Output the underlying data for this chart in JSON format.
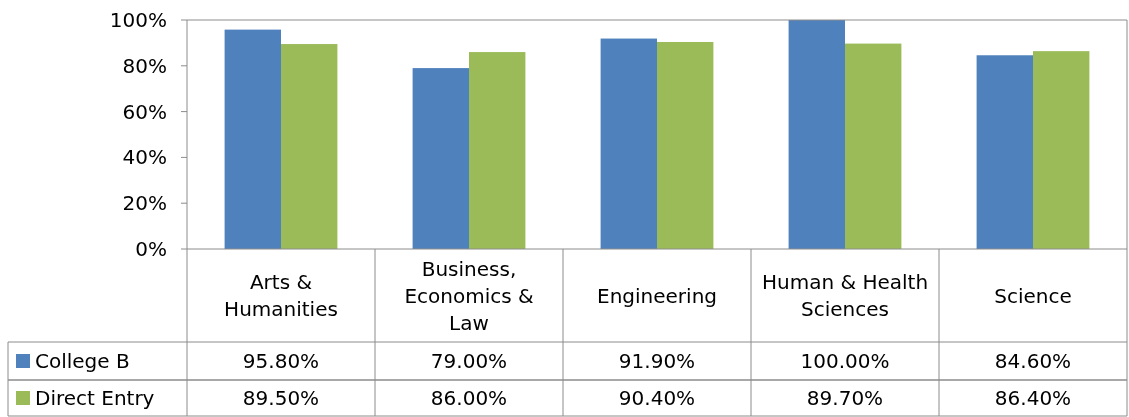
{
  "chart_data": {
    "type": "bar",
    "categories": [
      "Arts & Humanities",
      "Business, Economics & Law",
      "Engineering",
      "Human & Health Sciences",
      "Science"
    ],
    "series": [
      {
        "name": "College B",
        "color": "#4f81bd",
        "values": [
          95.8,
          79.0,
          91.9,
          100.0,
          84.6
        ],
        "value_labels": [
          "95.80%",
          "79.00%",
          "91.90%",
          "100.00%",
          "84.60%"
        ]
      },
      {
        "name": "Direct Entry",
        "color": "#9bbb59",
        "values": [
          89.5,
          86.0,
          90.4,
          89.7,
          86.4
        ],
        "value_labels": [
          "89.50%",
          "86.00%",
          "90.40%",
          "89.70%",
          "86.40%"
        ]
      }
    ],
    "ylim": [
      0,
      100
    ],
    "yticks": [
      {
        "value": 0,
        "label": "0%"
      },
      {
        "value": 20,
        "label": "20%"
      },
      {
        "value": 40,
        "label": "40%"
      },
      {
        "value": 60,
        "label": "60%"
      },
      {
        "value": 80,
        "label": "80%"
      },
      {
        "value": 100,
        "label": "100%"
      }
    ],
    "legend": "bottom"
  }
}
